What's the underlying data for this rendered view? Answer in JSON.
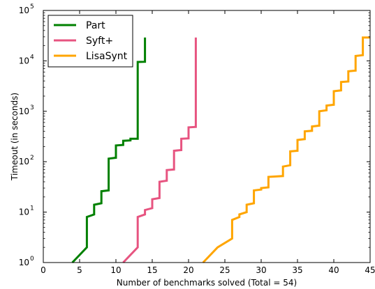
{
  "chart_data": {
    "type": "line",
    "step": true,
    "xlabel": "Number of benchmarks solved (Total = 54)",
    "ylabel": "Timeout (in seconds)",
    "xlim": [
      0,
      45
    ],
    "ylim": [
      1,
      100000
    ],
    "yscale": "log",
    "xticks": [
      0,
      5,
      10,
      15,
      20,
      25,
      30,
      35,
      40,
      45
    ],
    "yticks": [
      {
        "value": 1,
        "base": "10",
        "exp": "0"
      },
      {
        "value": 10,
        "base": "10",
        "exp": "1"
      },
      {
        "value": 100,
        "base": "10",
        "exp": "2"
      },
      {
        "value": 1000,
        "base": "10",
        "exp": "3"
      },
      {
        "value": 10000,
        "base": "10",
        "exp": "4"
      },
      {
        "value": 100000,
        "base": "10",
        "exp": "5"
      }
    ],
    "legend_position": "top-left",
    "series": [
      {
        "name": "Part",
        "color": "#008000",
        "points": [
          [
            4,
            1
          ],
          [
            6,
            2
          ],
          [
            6,
            8
          ],
          [
            7,
            9
          ],
          [
            7,
            14
          ],
          [
            8,
            15
          ],
          [
            8,
            26
          ],
          [
            9,
            27
          ],
          [
            9,
            115
          ],
          [
            10,
            120
          ],
          [
            10,
            210
          ],
          [
            11,
            215
          ],
          [
            11,
            260
          ],
          [
            12,
            265
          ],
          [
            12,
            285
          ],
          [
            13,
            285
          ],
          [
            13,
            9500
          ],
          [
            14,
            9600
          ],
          [
            14,
            29000
          ]
        ]
      },
      {
        "name": "Syft+",
        "color": "#e75480",
        "points": [
          [
            11,
            1
          ],
          [
            13,
            2
          ],
          [
            13,
            8
          ],
          [
            14,
            9
          ],
          [
            14,
            11
          ],
          [
            15,
            12
          ],
          [
            15,
            18
          ],
          [
            16,
            19
          ],
          [
            16,
            40
          ],
          [
            17,
            42
          ],
          [
            17,
            68
          ],
          [
            18,
            70
          ],
          [
            18,
            165
          ],
          [
            19,
            170
          ],
          [
            19,
            285
          ],
          [
            20,
            290
          ],
          [
            20,
            480
          ],
          [
            21,
            490
          ],
          [
            21,
            29000
          ]
        ]
      },
      {
        "name": "LisaSynt",
        "color": "#ffa500",
        "points": [
          [
            22,
            1
          ],
          [
            24,
            2
          ],
          [
            26,
            3
          ],
          [
            26,
            7
          ],
          [
            27,
            8
          ],
          [
            27,
            9
          ],
          [
            28,
            10
          ],
          [
            28,
            14
          ],
          [
            29,
            15
          ],
          [
            29,
            27
          ],
          [
            30,
            28
          ],
          [
            30,
            30
          ],
          [
            31,
            31
          ],
          [
            31,
            50
          ],
          [
            33,
            52
          ],
          [
            33,
            80
          ],
          [
            34,
            85
          ],
          [
            34,
            160
          ],
          [
            35,
            165
          ],
          [
            35,
            270
          ],
          [
            36,
            280
          ],
          [
            36,
            400
          ],
          [
            37,
            410
          ],
          [
            37,
            500
          ],
          [
            38,
            520
          ],
          [
            38,
            1000
          ],
          [
            39,
            1050
          ],
          [
            39,
            1300
          ],
          [
            40,
            1350
          ],
          [
            40,
            2500
          ],
          [
            41,
            2600
          ],
          [
            41,
            3800
          ],
          [
            42,
            3900
          ],
          [
            42,
            6200
          ],
          [
            43,
            6400
          ],
          [
            43,
            12500
          ],
          [
            44,
            13000
          ],
          [
            44,
            29000
          ],
          [
            45,
            29000
          ]
        ]
      }
    ]
  }
}
